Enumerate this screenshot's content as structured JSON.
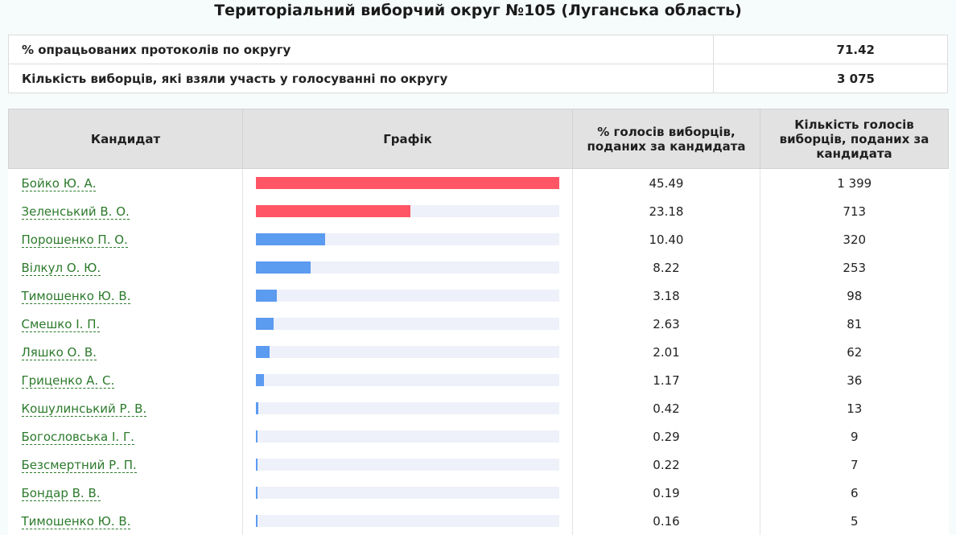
{
  "title": "Територіальний виборчий округ №105 (Луганська область)",
  "summary": [
    {
      "label": "% опрацьованих протоколів по округу",
      "value": "71.42"
    },
    {
      "label": "Кількість виборців, які взяли участь у голосуванні по округу",
      "value": "3 075"
    }
  ],
  "headers": {
    "candidate": "Кандидат",
    "chart": "Графік",
    "percent": "% голосів виборців, поданих за кандидата",
    "count": "Кількість голосів виборців, поданих за кандидата"
  },
  "colors": {
    "leader": "#ff5565",
    "other": "#5b9bf0",
    "track": "#eef1f9"
  },
  "candidates": [
    {
      "name": "Бойко Ю. А.",
      "percent": "45.49",
      "votes": "1 399",
      "color": "#ff5565"
    },
    {
      "name": "Зеленський В. О.",
      "percent": "23.18",
      "votes": "713",
      "color": "#ff5565"
    },
    {
      "name": "Порошенко П. О.",
      "percent": "10.40",
      "votes": "320",
      "color": "#5b9bf0"
    },
    {
      "name": "Вілкул О. Ю.",
      "percent": "8.22",
      "votes": "253",
      "color": "#5b9bf0"
    },
    {
      "name": "Тимошенко Ю. В.",
      "percent": "3.18",
      "votes": "98",
      "color": "#5b9bf0"
    },
    {
      "name": "Смешко І. П.",
      "percent": "2.63",
      "votes": "81",
      "color": "#5b9bf0"
    },
    {
      "name": "Ляшко О. В.",
      "percent": "2.01",
      "votes": "62",
      "color": "#5b9bf0"
    },
    {
      "name": "Гриценко А. С.",
      "percent": "1.17",
      "votes": "36",
      "color": "#5b9bf0"
    },
    {
      "name": "Кошулинський Р. В.",
      "percent": "0.42",
      "votes": "13",
      "color": "#5b9bf0"
    },
    {
      "name": "Богословська І. Г.",
      "percent": "0.29",
      "votes": "9",
      "color": "#5b9bf0"
    },
    {
      "name": "Безсмертний Р. П.",
      "percent": "0.22",
      "votes": "7",
      "color": "#5b9bf0"
    },
    {
      "name": "Бондар В. В.",
      "percent": "0.19",
      "votes": "6",
      "color": "#5b9bf0"
    },
    {
      "name": "Тимошенко Ю. В.",
      "percent": "0.16",
      "votes": "5",
      "color": "#5b9bf0"
    }
  ]
}
